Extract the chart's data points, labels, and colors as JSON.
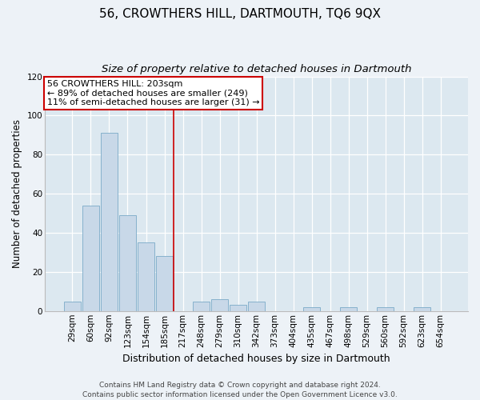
{
  "title": "56, CROWTHERS HILL, DARTMOUTH, TQ6 9QX",
  "subtitle": "Size of property relative to detached houses in Dartmouth",
  "xlabel": "Distribution of detached houses by size in Dartmouth",
  "ylabel": "Number of detached properties",
  "bar_color": "#c8d8e8",
  "bar_edge_color": "#7aaac8",
  "background_color": "#dce8f0",
  "fig_background_color": "#edf2f7",
  "categories": [
    "29sqm",
    "60sqm",
    "92sqm",
    "123sqm",
    "154sqm",
    "185sqm",
    "217sqm",
    "248sqm",
    "279sqm",
    "310sqm",
    "342sqm",
    "373sqm",
    "404sqm",
    "435sqm",
    "467sqm",
    "498sqm",
    "529sqm",
    "560sqm",
    "592sqm",
    "623sqm",
    "654sqm"
  ],
  "values": [
    5,
    54,
    91,
    49,
    35,
    28,
    0,
    5,
    6,
    3,
    5,
    0,
    0,
    2,
    0,
    2,
    0,
    2,
    0,
    2,
    0
  ],
  "ylim": [
    0,
    120
  ],
  "yticks": [
    0,
    20,
    40,
    60,
    80,
    100,
    120
  ],
  "vline_pos": 5.5,
  "vline_color": "#cc0000",
  "annotation_title": "56 CROWTHERS HILL: 203sqm",
  "annotation_line1": "← 89% of detached houses are smaller (249)",
  "annotation_line2": "11% of semi-detached houses are larger (31) →",
  "annotation_box_edge_color": "#cc0000",
  "footer1": "Contains HM Land Registry data © Crown copyright and database right 2024.",
  "footer2": "Contains public sector information licensed under the Open Government Licence v3.0.",
  "title_fontsize": 11,
  "subtitle_fontsize": 9.5,
  "xlabel_fontsize": 9,
  "ylabel_fontsize": 8.5,
  "tick_fontsize": 7.5,
  "annotation_fontsize": 8,
  "footer_fontsize": 6.5
}
